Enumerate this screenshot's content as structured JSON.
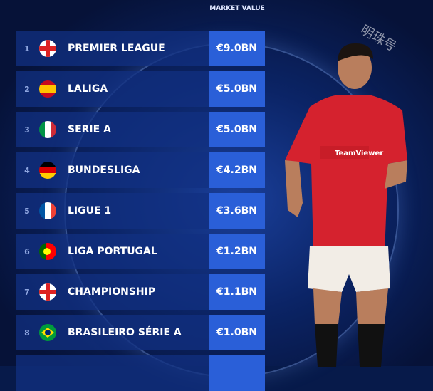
{
  "header": {
    "market_value": "MARKET VALUE"
  },
  "watermark": "明珠号",
  "leagues": [
    {
      "rank": "1",
      "name": "PREMIER LEAGUE",
      "value": "€9.0BN",
      "flag": "england"
    },
    {
      "rank": "2",
      "name": "LALIGA",
      "value": "€5.0BN",
      "flag": "spain"
    },
    {
      "rank": "3",
      "name": "SERIE A",
      "value": "€5.0BN",
      "flag": "italy"
    },
    {
      "rank": "4",
      "name": "BUNDESLIGA",
      "value": "€4.2BN",
      "flag": "germany"
    },
    {
      "rank": "5",
      "name": "LIGUE 1",
      "value": "€3.6BN",
      "flag": "france"
    },
    {
      "rank": "6",
      "name": "LIGA PORTUGAL",
      "value": "€1.2BN",
      "flag": "portugal"
    },
    {
      "rank": "7",
      "name": "CHAMPIONSHIP",
      "value": "€1.1BN",
      "flag": "england"
    },
    {
      "rank": "8",
      "name": "BRASILEIRO SÉRIE A",
      "value": "€1.0BN",
      "flag": "brazil"
    }
  ],
  "player": {
    "sponsor": "TeamViewer"
  },
  "colors": {
    "value_box": "#2a5fd8",
    "row": "#12308a",
    "background": "#071a4a",
    "shirt": "#d5222e"
  }
}
